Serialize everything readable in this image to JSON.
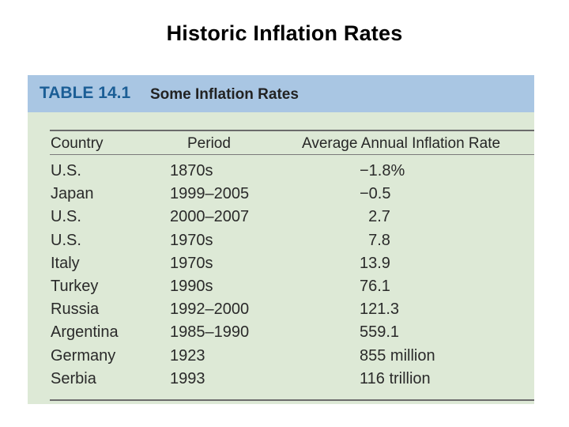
{
  "slide": {
    "title": "Historic Inflation Rates"
  },
  "table": {
    "label": "TABLE 14.1",
    "caption": "Some Inflation Rates",
    "columns": [
      "Country",
      "Period",
      "Average Annual Inflation Rate"
    ],
    "rows": [
      {
        "country": "U.S.",
        "period": "1870s",
        "rate": "−1.8%"
      },
      {
        "country": "Japan",
        "period": "1999–2005",
        "rate": "−0.5"
      },
      {
        "country": "U.S.",
        "period": "2000–2007",
        "rate": " 2.7"
      },
      {
        "country": "U.S.",
        "period": "1970s",
        "rate": " 7.8"
      },
      {
        "country": "Italy",
        "period": "1970s",
        "rate": "13.9"
      },
      {
        "country": "Turkey",
        "period": "1990s",
        "rate": "76.1"
      },
      {
        "country": "Russia",
        "period": "1992–2000",
        "rate": "121.3"
      },
      {
        "country": "Argentina",
        "period": "1985–1990",
        "rate": "559.1"
      },
      {
        "country": "Germany",
        "period": "1923",
        "rate": "855 million"
      },
      {
        "country": "Serbia",
        "period": "1993",
        "rate": "116 trillion"
      }
    ]
  }
}
